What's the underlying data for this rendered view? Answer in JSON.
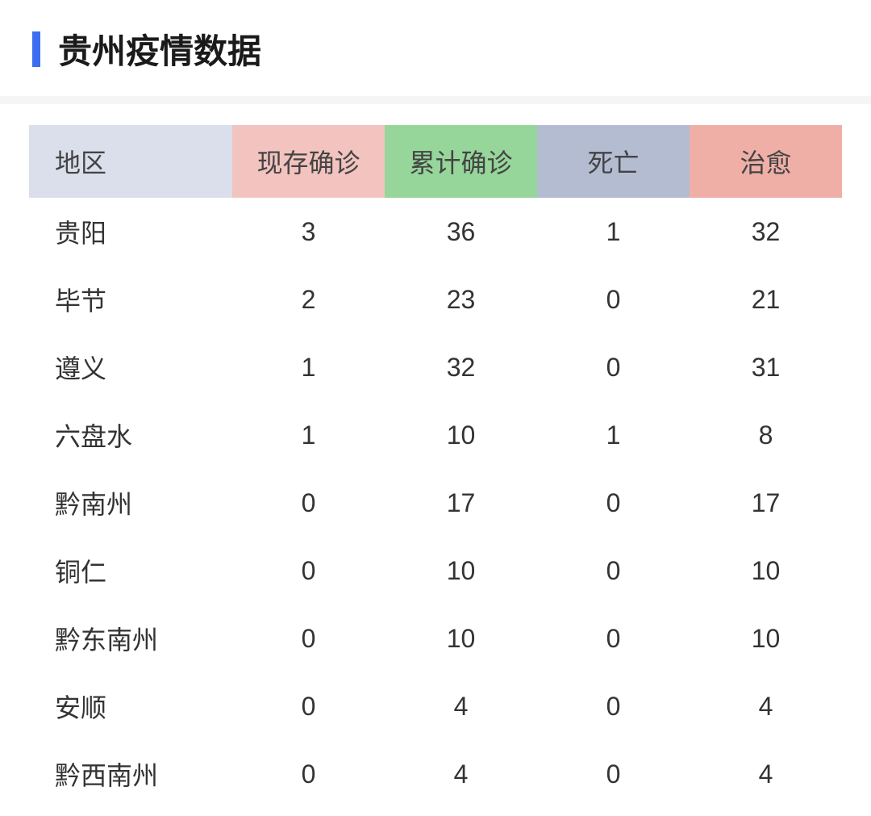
{
  "title": "贵州疫情数据",
  "header_colors": {
    "region": "#dbdfec",
    "current_confirmed": "#f2c3bf",
    "total_confirmed": "#96d69a",
    "deaths": "#b4bcd2",
    "cured": "#efafa7"
  },
  "accent_color": "#3d6ef2",
  "columns": [
    {
      "key": "region",
      "label": "地区"
    },
    {
      "key": "current",
      "label": "现存确诊"
    },
    {
      "key": "total",
      "label": "累计确诊"
    },
    {
      "key": "death",
      "label": "死亡"
    },
    {
      "key": "cured",
      "label": "治愈"
    }
  ],
  "rows": [
    {
      "region": "贵阳",
      "current": "3",
      "total": "36",
      "death": "1",
      "cured": "32"
    },
    {
      "region": "毕节",
      "current": "2",
      "total": "23",
      "death": "0",
      "cured": "21"
    },
    {
      "region": "遵义",
      "current": "1",
      "total": "32",
      "death": "0",
      "cured": "31"
    },
    {
      "region": "六盘水",
      "current": "1",
      "total": "10",
      "death": "1",
      "cured": "8"
    },
    {
      "region": "黔南州",
      "current": "0",
      "total": "17",
      "death": "0",
      "cured": "17"
    },
    {
      "region": "铜仁",
      "current": "0",
      "total": "10",
      "death": "0",
      "cured": "10"
    },
    {
      "region": "黔东南州",
      "current": "0",
      "total": "10",
      "death": "0",
      "cured": "10"
    },
    {
      "region": "安顺",
      "current": "0",
      "total": "4",
      "death": "0",
      "cured": "4"
    },
    {
      "region": "黔西南州",
      "current": "0",
      "total": "4",
      "death": "0",
      "cured": "4"
    }
  ]
}
